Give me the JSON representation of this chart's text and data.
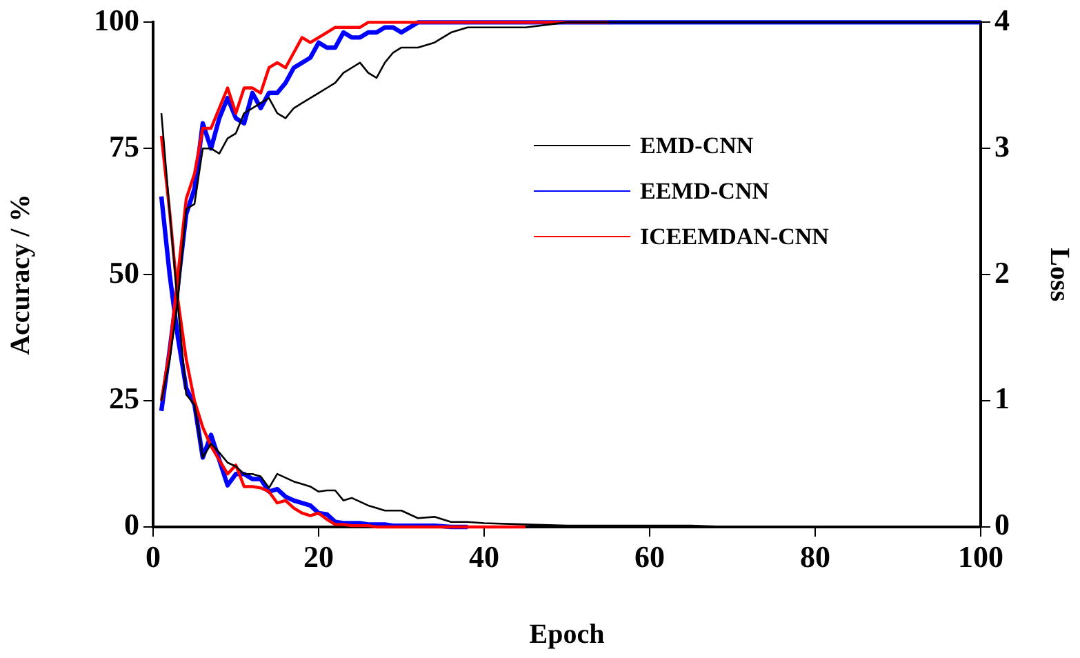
{
  "chart_data": {
    "type": "line",
    "xlabel": "Epoch",
    "ylabel": "Accuracy / %",
    "y2label": "Loss",
    "x": [
      1,
      2,
      3,
      4,
      5,
      6,
      7,
      8,
      9,
      10,
      11,
      12,
      13,
      14,
      15,
      16,
      17,
      18,
      19,
      20,
      21,
      22,
      23,
      24,
      25,
      26,
      27,
      28,
      29,
      30,
      32,
      34,
      36,
      38,
      40,
      45,
      50,
      55,
      60,
      65,
      70,
      75,
      80,
      85,
      90,
      95,
      100
    ],
    "xlim": [
      0,
      100
    ],
    "xticks": [
      0,
      20,
      40,
      60,
      80,
      100
    ],
    "ylim": [
      0,
      100
    ],
    "yticks": [
      0,
      25,
      50,
      75,
      100
    ],
    "y2lim": [
      0,
      4
    ],
    "y2ticks": [
      0,
      1,
      2,
      3,
      4
    ],
    "grid": false,
    "legend": "center",
    "marker": "none",
    "line_style": "solid",
    "series": [
      {
        "name": "EMD-CNN",
        "color": "#000000",
        "values": [
          25,
          33,
          45,
          63,
          64,
          75,
          75,
          74,
          77,
          78,
          82,
          83,
          84,
          85,
          82,
          81,
          83,
          84,
          85,
          86,
          87,
          88,
          90,
          91,
          92,
          90,
          89,
          92,
          94,
          95,
          95,
          96,
          98,
          99,
          99,
          99,
          100,
          100,
          100,
          100,
          100,
          100,
          100,
          100,
          100,
          100,
          100
        ]
      },
      {
        "name": "EEMD-CNN",
        "color": "#0000ff",
        "values": [
          23,
          35,
          48,
          62,
          67,
          80,
          75,
          81,
          85,
          81,
          80,
          86,
          83,
          86,
          86,
          88,
          91,
          92,
          93,
          96,
          95,
          95,
          98,
          97,
          97,
          98,
          98,
          99,
          99,
          98,
          100,
          100,
          100,
          100,
          100,
          100,
          100,
          100,
          100,
          100,
          100,
          100,
          100,
          100,
          100,
          100,
          100
        ]
      },
      {
        "name": "ICEEMDAN-CNN",
        "color": "#ff0000",
        "values": [
          25,
          35,
          50,
          65,
          70,
          79,
          79,
          83,
          87,
          82,
          87,
          87,
          86,
          91,
          92,
          91,
          94,
          97,
          96,
          97,
          98,
          99,
          99,
          99,
          99,
          100,
          100,
          100,
          100,
          100,
          100,
          100,
          100,
          100,
          100,
          100,
          100,
          100,
          null,
          null,
          null,
          null,
          null,
          null,
          null,
          null,
          null
        ]
      },
      {
        "color": "#000000",
        "axis": "y2",
        "values": [
          3.28,
          2.5,
          1.75,
          1.05,
          0.97,
          0.55,
          0.66,
          0.59,
          0.51,
          0.48,
          0.42,
          0.42,
          0.4,
          0.31,
          0.42,
          0.39,
          0.36,
          0.34,
          0.32,
          0.28,
          0.29,
          0.29,
          0.21,
          0.23,
          0.2,
          0.17,
          0.15,
          0.13,
          0.13,
          0.13,
          0.07,
          0.08,
          0.04,
          0.04,
          0.03,
          0.02,
          0.01,
          0.01,
          0.01,
          0.01,
          0,
          0,
          0,
          0,
          0,
          0,
          0
        ]
      },
      {
        "color": "#0000ff",
        "axis": "y2",
        "values": [
          2.62,
          2.0,
          1.5,
          1.1,
          0.97,
          0.55,
          0.73,
          0.53,
          0.33,
          0.42,
          0.42,
          0.38,
          0.38,
          0.28,
          0.3,
          0.24,
          0.21,
          0.19,
          0.17,
          0.11,
          0.1,
          0.04,
          0.03,
          0.03,
          0.03,
          0.02,
          0.02,
          0.02,
          0.01,
          0.01,
          0.01,
          0.01,
          0,
          0,
          null,
          null,
          null,
          null,
          null,
          null,
          null,
          null,
          null,
          null,
          null,
          null,
          null
        ]
      },
      {
        "color": "#ff0000",
        "axis": "y2",
        "values": [
          3.1,
          2.5,
          1.8,
          1.33,
          1.0,
          0.79,
          0.64,
          0.53,
          0.42,
          0.49,
          0.32,
          0.32,
          0.31,
          0.28,
          0.19,
          0.21,
          0.15,
          0.11,
          0.09,
          0.11,
          0.06,
          0.02,
          0.02,
          0.01,
          0.01,
          0.01,
          0,
          0,
          0,
          0,
          0,
          0,
          0,
          0,
          0,
          0,
          null,
          null,
          null,
          null,
          null,
          null,
          null,
          null,
          null,
          null,
          null
        ]
      }
    ]
  }
}
